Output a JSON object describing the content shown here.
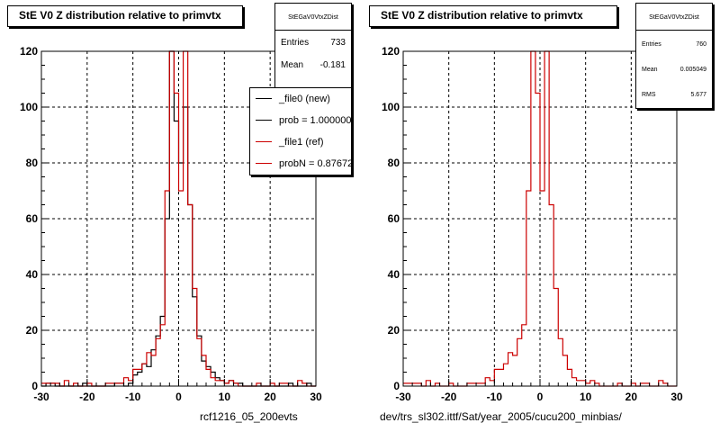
{
  "chart_data": [
    {
      "type": "histogram",
      "title": "StE V0 Z distribution relative to primvtx",
      "xlim": [
        -30,
        30
      ],
      "ylim": [
        0,
        120
      ],
      "xticks": [
        -30,
        -20,
        -10,
        0,
        10,
        20,
        30
      ],
      "yticks": [
        0,
        20,
        40,
        60,
        80,
        100,
        120
      ],
      "grid": true,
      "bin_width": 1,
      "stats": {
        "name": "StEGaV0VtxZDist",
        "entries_label": "Entries",
        "entries": "733",
        "mean_label": "Mean",
        "mean": "-0.181"
      },
      "legend": {
        "position": "top-right",
        "entries": [
          {
            "label": "_file0 (new)",
            "color": "#000000"
          },
          {
            "label": "prob = 1.000000",
            "color": "#000000"
          },
          {
            "label": "_file1 (ref)",
            "color": "#cc0000"
          },
          {
            "label": "probN = 0.876720",
            "color": "#cc0000"
          }
        ]
      },
      "footer": "rcf1216_05_200evts",
      "series": [
        {
          "color": "#000000",
          "x_start": -30,
          "values": [
            0,
            1,
            1,
            0,
            0,
            0,
            0,
            0,
            0,
            1,
            0,
            0,
            0,
            0,
            0,
            0,
            1,
            1,
            0,
            1,
            4,
            5,
            8,
            7,
            13,
            18,
            25,
            60,
            120,
            95,
            80,
            100,
            65,
            32,
            18,
            9,
            7,
            5,
            3,
            2,
            1,
            2,
            1,
            1,
            0,
            0,
            0,
            0,
            0,
            0,
            0,
            0,
            0,
            0,
            1,
            0,
            0,
            0,
            1,
            0
          ]
        },
        {
          "color": "#cc0000",
          "x_start": -30,
          "values": [
            1,
            1,
            1,
            1,
            0,
            2,
            0,
            1,
            0,
            0,
            1,
            0,
            0,
            0,
            1,
            1,
            1,
            1,
            3,
            2,
            6,
            6,
            8,
            12,
            11,
            17,
            22,
            70,
            120,
            105,
            70,
            120,
            65,
            35,
            17,
            11,
            6,
            3,
            2,
            2,
            1,
            2,
            1,
            0,
            0,
            0,
            0,
            1,
            0,
            0,
            1,
            0,
            1,
            1,
            0,
            0,
            2,
            1,
            0,
            0
          ]
        }
      ]
    },
    {
      "type": "histogram",
      "title": "StE V0 Z distribution relative to primvtx",
      "xlim": [
        -30,
        30
      ],
      "ylim": [
        0,
        120
      ],
      "xticks": [
        -30,
        -20,
        -10,
        0,
        10,
        20,
        30
      ],
      "yticks": [
        0,
        20,
        40,
        60,
        80,
        100,
        120
      ],
      "grid": true,
      "bin_width": 1,
      "stats": {
        "name": "StEGaV0VtxZDist",
        "entries_label": "Entries",
        "entries": "760",
        "mean_label": "Mean",
        "mean": "0.005049",
        "rms_label": "RMS",
        "rms": "5.677"
      },
      "footer": "dev/trs_sl302.ittf/Sat/year_2005/cucu200_minbias/",
      "series": [
        {
          "color": "#cc0000",
          "x_start": -30,
          "values": [
            1,
            1,
            1,
            1,
            0,
            2,
            0,
            1,
            0,
            0,
            1,
            0,
            0,
            0,
            1,
            1,
            1,
            1,
            3,
            2,
            6,
            6,
            8,
            12,
            11,
            17,
            22,
            70,
            120,
            105,
            70,
            120,
            65,
            35,
            17,
            11,
            6,
            3,
            2,
            2,
            1,
            2,
            1,
            0,
            0,
            0,
            0,
            1,
            0,
            0,
            1,
            0,
            1,
            1,
            0,
            0,
            2,
            1,
            0,
            0
          ]
        }
      ]
    }
  ]
}
